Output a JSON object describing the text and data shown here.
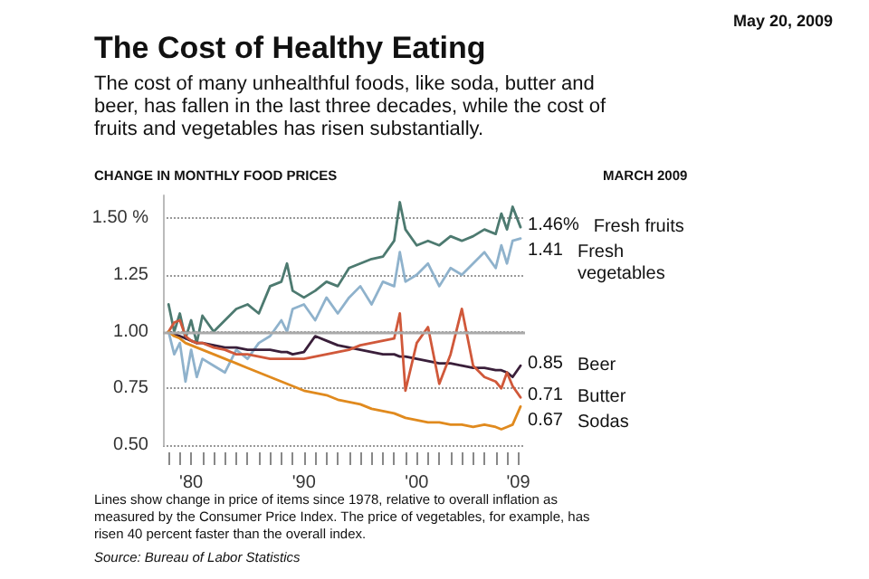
{
  "chart_data": {
    "type": "line",
    "title": "The Cost of Healthy Eating",
    "subtitle": "The cost of many unhealthful foods, like soda, butter and beer, has fallen in the last three decades, while the cost of fruits and vegetables has risen substantially.",
    "ylabel": "CHANGE IN MONTHLY FOOD PRICES",
    "annotations": [
      "May 20, 2009",
      "MARCH 2009",
      "Lines show change in price of items since 1978, relative to overall inflation as measured by the Consumer Price Index. The price of vegetables, for example, has risen 40 percent faster than the overall index.",
      "Source: Bureau of Labor Statistics"
    ],
    "x": [
      1978,
      1978.5,
      1979,
      1979.5,
      1980,
      1980.5,
      1981,
      1982,
      1983,
      1984,
      1985,
      1986,
      1987,
      1988,
      1988.5,
      1989,
      1990,
      1991,
      1992,
      1993,
      1994,
      1995,
      1996,
      1997,
      1998,
      1998.5,
      1999,
      2000,
      2001,
      2002,
      2003,
      2004,
      2005,
      2006,
      2007,
      2007.5,
      2008,
      2008.5,
      2009.2
    ],
    "series": [
      {
        "name": "Fresh fruits",
        "color": "#4d7a70",
        "value_labels": [
          null,
          null,
          null,
          null,
          null,
          null,
          null,
          null,
          null,
          null,
          null,
          null,
          null,
          null,
          null,
          null,
          null,
          null,
          null,
          null,
          null,
          null,
          null,
          null,
          null,
          null,
          null,
          null,
          null,
          null,
          null,
          null,
          null,
          null,
          null,
          null,
          null,
          null,
          "1.46%"
        ],
        "values": [
          1.12,
          1.0,
          1.08,
          0.97,
          1.05,
          0.95,
          1.07,
          1.0,
          1.05,
          1.1,
          1.12,
          1.08,
          1.2,
          1.22,
          1.3,
          1.18,
          1.15,
          1.18,
          1.22,
          1.2,
          1.28,
          1.3,
          1.32,
          1.33,
          1.4,
          1.57,
          1.45,
          1.38,
          1.4,
          1.38,
          1.42,
          1.4,
          1.42,
          1.45,
          1.43,
          1.52,
          1.45,
          1.55,
          1.46
        ]
      },
      {
        "name": "Fresh vegetables",
        "color": "#8fb2cc",
        "value_labels": [
          null,
          null,
          null,
          null,
          null,
          null,
          null,
          null,
          null,
          null,
          null,
          null,
          null,
          null,
          null,
          null,
          null,
          null,
          null,
          null,
          null,
          null,
          null,
          null,
          null,
          null,
          null,
          null,
          null,
          null,
          null,
          null,
          null,
          null,
          null,
          null,
          null,
          null,
          "1.41"
        ],
        "values": [
          1.0,
          0.9,
          0.95,
          0.78,
          0.92,
          0.8,
          0.88,
          0.85,
          0.82,
          0.92,
          0.88,
          0.95,
          0.98,
          1.05,
          1.0,
          1.1,
          1.12,
          1.05,
          1.15,
          1.08,
          1.15,
          1.2,
          1.12,
          1.22,
          1.2,
          1.35,
          1.22,
          1.25,
          1.3,
          1.2,
          1.28,
          1.25,
          1.3,
          1.35,
          1.28,
          1.38,
          1.3,
          1.4,
          1.41
        ]
      },
      {
        "name": "Beer",
        "color": "#3a1f3a",
        "value_labels": [
          null,
          null,
          null,
          null,
          null,
          null,
          null,
          null,
          null,
          null,
          null,
          null,
          null,
          null,
          null,
          null,
          null,
          null,
          null,
          null,
          null,
          null,
          null,
          null,
          null,
          null,
          null,
          null,
          null,
          null,
          null,
          null,
          null,
          null,
          null,
          null,
          null,
          null,
          "0.85"
        ],
        "values": [
          1.0,
          0.99,
          0.98,
          0.97,
          0.96,
          0.95,
          0.95,
          0.94,
          0.93,
          0.93,
          0.92,
          0.92,
          0.92,
          0.91,
          0.91,
          0.9,
          0.91,
          0.98,
          0.96,
          0.94,
          0.93,
          0.92,
          0.91,
          0.9,
          0.9,
          0.89,
          0.89,
          0.88,
          0.87,
          0.86,
          0.86,
          0.85,
          0.84,
          0.84,
          0.83,
          0.83,
          0.82,
          0.8,
          0.85
        ]
      },
      {
        "name": "Butter",
        "color": "#d0583a",
        "value_labels": [
          null,
          null,
          null,
          null,
          null,
          null,
          null,
          null,
          null,
          null,
          null,
          null,
          null,
          null,
          null,
          null,
          null,
          null,
          null,
          null,
          null,
          null,
          null,
          null,
          null,
          null,
          null,
          null,
          null,
          null,
          null,
          null,
          null,
          null,
          null,
          null,
          null,
          null,
          "0.71"
        ],
        "values": [
          1.0,
          1.04,
          1.05,
          0.98,
          0.96,
          0.95,
          0.95,
          0.93,
          0.92,
          0.9,
          0.9,
          0.89,
          0.88,
          0.88,
          0.88,
          0.88,
          0.88,
          0.89,
          0.9,
          0.91,
          0.92,
          0.94,
          0.95,
          0.96,
          0.97,
          1.08,
          0.74,
          0.95,
          1.02,
          0.77,
          0.9,
          1.1,
          0.85,
          0.8,
          0.78,
          0.75,
          0.82,
          0.76,
          0.71
        ]
      },
      {
        "name": "Sodas",
        "color": "#e08a1e",
        "value_labels": [
          null,
          null,
          null,
          null,
          null,
          null,
          null,
          null,
          null,
          null,
          null,
          null,
          null,
          null,
          null,
          null,
          null,
          null,
          null,
          null,
          null,
          null,
          null,
          null,
          null,
          null,
          null,
          null,
          null,
          null,
          null,
          null,
          null,
          null,
          null,
          null,
          null,
          null,
          "0.67"
        ],
        "values": [
          1.0,
          0.98,
          0.97,
          0.95,
          0.94,
          0.93,
          0.92,
          0.9,
          0.88,
          0.86,
          0.84,
          0.82,
          0.8,
          0.78,
          0.77,
          0.76,
          0.74,
          0.73,
          0.72,
          0.7,
          0.69,
          0.68,
          0.66,
          0.65,
          0.64,
          0.63,
          0.62,
          0.61,
          0.6,
          0.6,
          0.59,
          0.59,
          0.58,
          0.59,
          0.58,
          0.57,
          0.58,
          0.59,
          0.67
        ]
      }
    ],
    "xlim": [
      1977.5,
      2009.6
    ],
    "xticks": [
      {
        "value": 1978,
        "label": null
      },
      {
        "value": 1979,
        "label": null
      },
      {
        "value": 1980,
        "label": "'80"
      },
      {
        "value": 1981,
        "label": null
      },
      {
        "value": 1982,
        "label": null
      },
      {
        "value": 1983,
        "label": null
      },
      {
        "value": 1984,
        "label": null
      },
      {
        "value": 1985,
        "label": null
      },
      {
        "value": 1986,
        "label": null
      },
      {
        "value": 1987,
        "label": null
      },
      {
        "value": 1988,
        "label": null
      },
      {
        "value": 1989,
        "label": null
      },
      {
        "value": 1990,
        "label": "'90"
      },
      {
        "value": 1991,
        "label": null
      },
      {
        "value": 1992,
        "label": null
      },
      {
        "value": 1993,
        "label": null
      },
      {
        "value": 1994,
        "label": null
      },
      {
        "value": 1995,
        "label": null
      },
      {
        "value": 1996,
        "label": null
      },
      {
        "value": 1997,
        "label": null
      },
      {
        "value": 1998,
        "label": null
      },
      {
        "value": 1999,
        "label": null
      },
      {
        "value": 2000,
        "label": "'00"
      },
      {
        "value": 2001,
        "label": null
      },
      {
        "value": 2002,
        "label": null
      },
      {
        "value": 2003,
        "label": null
      },
      {
        "value": 2004,
        "label": null
      },
      {
        "value": 2005,
        "label": null
      },
      {
        "value": 2006,
        "label": null
      },
      {
        "value": 2007,
        "label": null
      },
      {
        "value": 2008,
        "label": null
      },
      {
        "value": 2009,
        "label": "'09"
      }
    ],
    "ylim": [
      0.5,
      1.6
    ],
    "yticks": [
      {
        "value": 0.5,
        "label": "0.50"
      },
      {
        "value": 0.75,
        "label": "0.75"
      },
      {
        "value": 1.0,
        "label": "1.00"
      },
      {
        "value": 1.25,
        "label": "1.25"
      },
      {
        "value": 1.5,
        "label": "1.50 %"
      }
    ],
    "ref_lines": [
      {
        "axis": "y",
        "value": 1.0,
        "color": "#aaaaaa",
        "line_style": "solid"
      }
    ],
    "grid": "y",
    "legend": false,
    "marker": "none",
    "line_style": "solid"
  }
}
